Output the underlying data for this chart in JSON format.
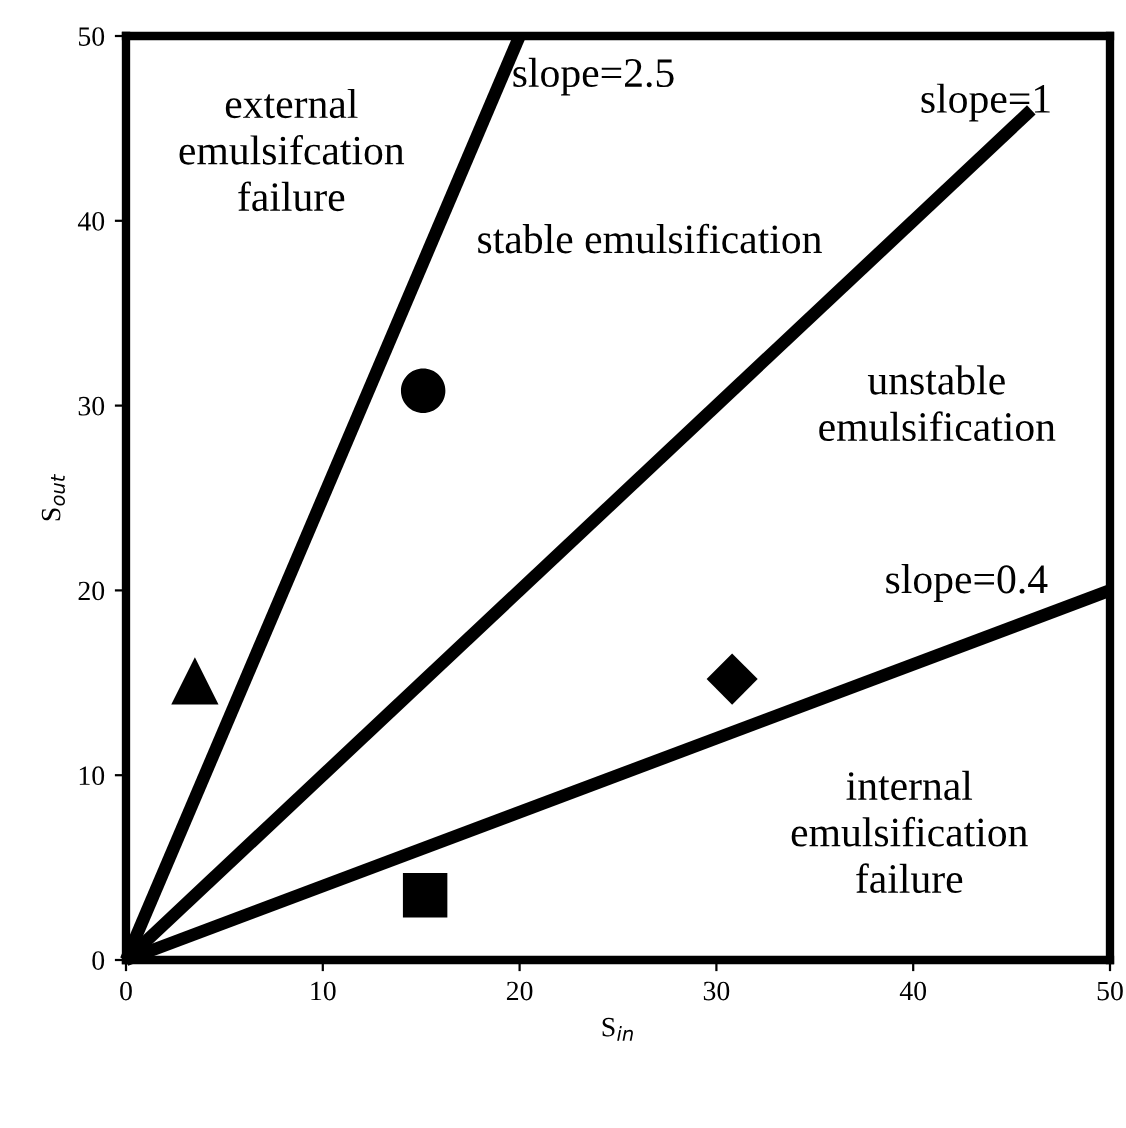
{
  "chart_data": {
    "type": "scatter",
    "xlabel": "S$_{in}$",
    "ylabel": "S$_{out}$",
    "xlim": [
      0,
      50
    ],
    "ylim": [
      0,
      50
    ],
    "xticks": [
      0,
      10,
      20,
      30,
      40,
      50
    ],
    "yticks": [
      0,
      10,
      20,
      30,
      40,
      50
    ],
    "grid": false,
    "legend": false,
    "series": [
      {
        "type": "line",
        "color": "#000000",
        "x": [
          0,
          20
        ],
        "values": [
          0,
          50
        ],
        "marker": "none",
        "line_style": "solid"
      },
      {
        "type": "line",
        "color": "#000000",
        "x": [
          0,
          46
        ],
        "values": [
          0,
          46
        ],
        "marker": "none",
        "line_style": "solid"
      },
      {
        "type": "line",
        "color": "#000000",
        "x": [
          0,
          50
        ],
        "values": [
          0,
          20
        ],
        "marker": "none",
        "line_style": "solid"
      },
      {
        "color": "#000000",
        "x": [
          15.1
        ],
        "values": [
          30.8
        ],
        "marker": "circle"
      },
      {
        "color": "#000000",
        "x": [
          3.5
        ],
        "values": [
          15.1
        ],
        "marker": "triangle"
      },
      {
        "color": "#000000",
        "x": [
          30.8
        ],
        "values": [
          15.2
        ],
        "marker": "diamond"
      },
      {
        "color": "#000000",
        "x": [
          15.2
        ],
        "values": [
          3.5
        ],
        "marker": "square"
      }
    ],
    "annotations": [
      "slope=2.5",
      "slope=1",
      "slope=0.4",
      "external\nemulsifcation\nfailure",
      "stable emulsification",
      "unstable\nemulsification",
      "internal\nemulsification\nfailure"
    ]
  }
}
